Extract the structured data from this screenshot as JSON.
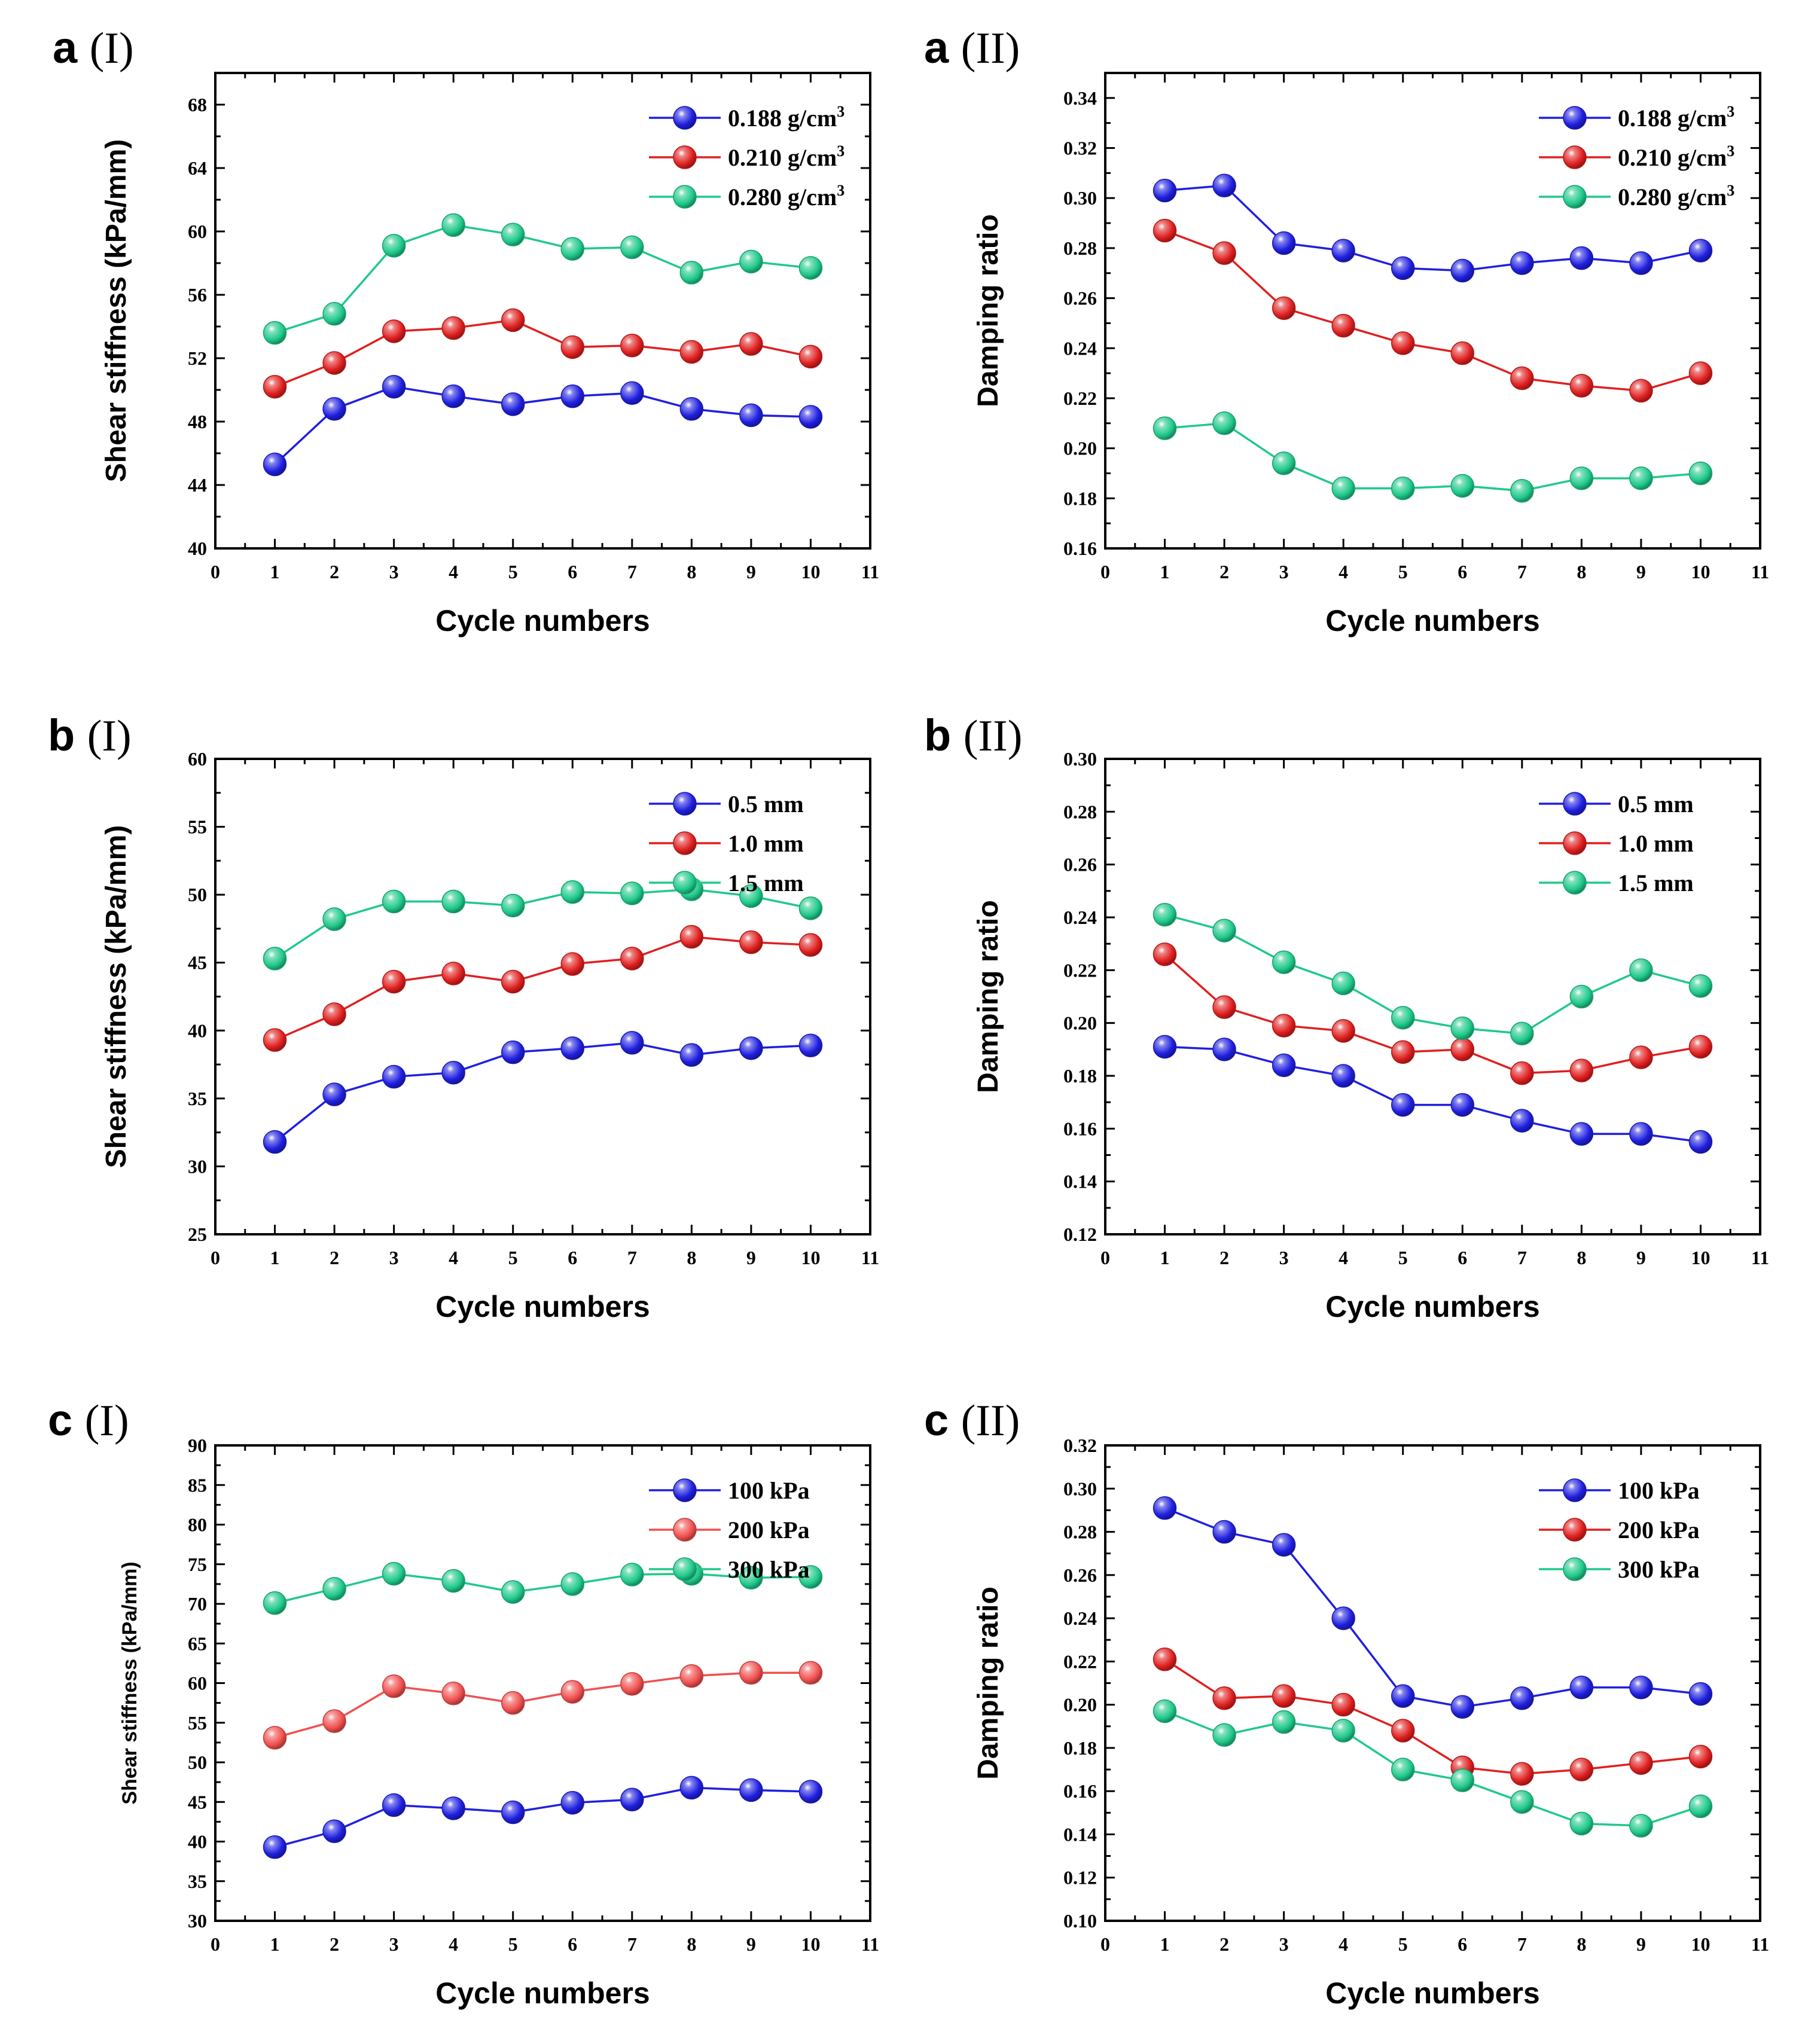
{
  "chart_data": [
    {
      "id": "a-I",
      "panel": "a",
      "subpanel": "(I)",
      "type": "line",
      "xlabel": "Cycle numbers",
      "ylabel": "Shear stiffness (kPa/mm)",
      "xlim": [
        0,
        11
      ],
      "ylim": [
        40,
        70
      ],
      "xticks": [
        "0",
        "1",
        "2",
        "3",
        "4",
        "5",
        "6",
        "7",
        "8",
        "9",
        "10",
        "11"
      ],
      "yticks": [
        "40",
        "44",
        "48",
        "52",
        "56",
        "60",
        "64",
        "68"
      ],
      "ytick_values": [
        40,
        44,
        48,
        52,
        56,
        60,
        64,
        68
      ],
      "legend_position": "top-right",
      "x": [
        1,
        2,
        3,
        4,
        5,
        6,
        7,
        8,
        9,
        10
      ],
      "series": [
        {
          "name": "0.188 g/cm",
          "sup": "3",
          "color": "#1f1fe0",
          "values": [
            45.3,
            48.8,
            50.2,
            49.6,
            49.1,
            49.6,
            49.8,
            48.8,
            48.4,
            48.3
          ]
        },
        {
          "name": "0.210 g/cm",
          "sup": "3",
          "color": "#e01f1f",
          "values": [
            50.2,
            51.7,
            53.7,
            53.9,
            54.4,
            52.7,
            52.8,
            52.4,
            52.9,
            52.1
          ]
        },
        {
          "name": "0.280 g/cm",
          "sup": "3",
          "color": "#1fc98a",
          "values": [
            53.6,
            54.8,
            59.1,
            60.4,
            59.8,
            58.9,
            59.0,
            57.4,
            58.1,
            57.7
          ]
        }
      ]
    },
    {
      "id": "a-II",
      "panel": "a",
      "subpanel": "(II)",
      "type": "line",
      "xlabel": "Cycle numbers",
      "ylabel": "Damping ratio",
      "xlim": [
        0,
        11
      ],
      "ylim": [
        0.16,
        0.35
      ],
      "xticks": [
        "0",
        "1",
        "2",
        "3",
        "4",
        "5",
        "6",
        "7",
        "8",
        "9",
        "10",
        "11"
      ],
      "yticks": [
        "0.16",
        "0.18",
        "0.20",
        "0.22",
        "0.24",
        "0.26",
        "0.28",
        "0.30",
        "0.32",
        "0.34"
      ],
      "ytick_values": [
        0.16,
        0.18,
        0.2,
        0.22,
        0.24,
        0.26,
        0.28,
        0.3,
        0.32,
        0.34
      ],
      "legend_position": "top-right",
      "x": [
        1,
        2,
        3,
        4,
        5,
        6,
        7,
        8,
        9,
        10
      ],
      "series": [
        {
          "name": "0.188 g/cm",
          "sup": "3",
          "color": "#1f1fe0",
          "values": [
            0.303,
            0.305,
            0.282,
            0.279,
            0.272,
            0.271,
            0.274,
            0.276,
            0.274,
            0.279
          ]
        },
        {
          "name": "0.210 g/cm",
          "sup": "3",
          "color": "#e01f1f",
          "values": [
            0.287,
            0.278,
            0.256,
            0.249,
            0.242,
            0.238,
            0.228,
            0.225,
            0.223,
            0.23
          ]
        },
        {
          "name": "0.280 g/cm",
          "sup": "3",
          "color": "#1fc98a",
          "values": [
            0.208,
            0.21,
            0.194,
            0.184,
            0.184,
            0.185,
            0.183,
            0.188,
            0.188,
            0.19
          ]
        }
      ]
    },
    {
      "id": "b-I",
      "panel": "b",
      "subpanel": "(I)",
      "type": "line",
      "xlabel": "Cycle numbers",
      "ylabel": "Shear stiffness (kPa/mm)",
      "xlim": [
        0,
        11
      ],
      "ylim": [
        25,
        60
      ],
      "xticks": [
        "0",
        "1",
        "2",
        "3",
        "4",
        "5",
        "6",
        "7",
        "8",
        "9",
        "10",
        "11"
      ],
      "yticks": [
        "25",
        "30",
        "35",
        "40",
        "45",
        "50",
        "55",
        "60"
      ],
      "ytick_values": [
        25,
        30,
        35,
        40,
        45,
        50,
        55,
        60
      ],
      "legend_position": "top-right",
      "x": [
        1,
        2,
        3,
        4,
        5,
        6,
        7,
        8,
        9,
        10
      ],
      "series": [
        {
          "name": "0.5 mm",
          "color": "#1f1fe0",
          "values": [
            31.8,
            35.3,
            36.6,
            36.9,
            38.4,
            38.7,
            39.1,
            38.2,
            38.7,
            38.9
          ]
        },
        {
          "name": "1.0 mm",
          "color": "#e01f1f",
          "values": [
            39.3,
            41.2,
            43.6,
            44.2,
            43.6,
            44.9,
            45.3,
            46.9,
            46.5,
            46.3
          ]
        },
        {
          "name": "1.5 mm",
          "color": "#1fc98a",
          "values": [
            45.3,
            48.2,
            49.5,
            49.5,
            49.2,
            50.2,
            50.1,
            50.4,
            49.9,
            49.0
          ]
        }
      ]
    },
    {
      "id": "b-II",
      "panel": "b",
      "subpanel": "(II)",
      "type": "line",
      "xlabel": "Cycle numbers",
      "ylabel": "Damping ratio",
      "xlim": [
        0,
        11
      ],
      "ylim": [
        0.12,
        0.3
      ],
      "xticks": [
        "0",
        "1",
        "2",
        "3",
        "4",
        "5",
        "6",
        "7",
        "8",
        "9",
        "10",
        "11"
      ],
      "yticks": [
        "0.12",
        "0.14",
        "0.16",
        "0.18",
        "0.20",
        "0.22",
        "0.24",
        "0.26",
        "0.28",
        "0.30"
      ],
      "ytick_values": [
        0.12,
        0.14,
        0.16,
        0.18,
        0.2,
        0.22,
        0.24,
        0.26,
        0.28,
        0.3
      ],
      "legend_position": "top-right",
      "x": [
        1,
        2,
        3,
        4,
        5,
        6,
        7,
        8,
        9,
        10
      ],
      "series": [
        {
          "name": "0.5 mm",
          "color": "#1f1fe0",
          "values": [
            0.191,
            0.19,
            0.184,
            0.18,
            0.169,
            0.169,
            0.163,
            0.158,
            0.158,
            0.155
          ]
        },
        {
          "name": "1.0 mm",
          "color": "#e01f1f",
          "values": [
            0.226,
            0.206,
            0.199,
            0.197,
            0.189,
            0.19,
            0.181,
            0.182,
            0.187,
            0.191
          ]
        },
        {
          "name": "1.5 mm",
          "color": "#1fc98a",
          "values": [
            0.241,
            0.235,
            0.223,
            0.215,
            0.202,
            0.198,
            0.196,
            0.21,
            0.22,
            0.214
          ]
        }
      ]
    },
    {
      "id": "c-I",
      "panel": "c",
      "subpanel": "(I)",
      "type": "line",
      "xlabel": "Cycle numbers",
      "ylabel": "Shear stiffness (kPa/mm)",
      "ylabel_style": "regular",
      "xlim": [
        0,
        11
      ],
      "ylim": [
        30,
        90
      ],
      "xticks": [
        "0",
        "1",
        "2",
        "3",
        "4",
        "5",
        "6",
        "7",
        "8",
        "9",
        "10",
        "11"
      ],
      "yticks": [
        "30",
        "35",
        "40",
        "45",
        "50",
        "55",
        "60",
        "65",
        "70",
        "75",
        "80",
        "85",
        "90"
      ],
      "ytick_values": [
        30,
        35,
        40,
        45,
        50,
        55,
        60,
        65,
        70,
        75,
        80,
        85,
        90
      ],
      "legend_position": "top-right",
      "x": [
        1,
        2,
        3,
        4,
        5,
        6,
        7,
        8,
        9,
        10
      ],
      "series": [
        {
          "name": "100 kPa",
          "color": "#1f1fe0",
          "values": [
            39.3,
            41.3,
            44.6,
            44.2,
            43.7,
            44.9,
            45.3,
            46.8,
            46.5,
            46.3
          ]
        },
        {
          "name": "200 kPa",
          "color": "#f0504f",
          "values": [
            53.1,
            55.2,
            59.6,
            58.7,
            57.5,
            58.9,
            59.9,
            60.9,
            61.3,
            61.3
          ]
        },
        {
          "name": "300 kPa",
          "color": "#1fc98a",
          "values": [
            70.1,
            71.9,
            73.8,
            72.9,
            71.5,
            72.5,
            73.7,
            73.8,
            73.3,
            73.4
          ]
        }
      ]
    },
    {
      "id": "c-II",
      "panel": "c",
      "subpanel": "(II)",
      "type": "line",
      "xlabel": "Cycle numbers",
      "ylabel": "Damping ratio",
      "xlim": [
        0,
        11
      ],
      "ylim": [
        0.1,
        0.32
      ],
      "xticks": [
        "0",
        "1",
        "2",
        "3",
        "4",
        "5",
        "6",
        "7",
        "8",
        "9",
        "10",
        "11"
      ],
      "yticks": [
        "0.10",
        "0.12",
        "0.14",
        "0.16",
        "0.18",
        "0.20",
        "0.22",
        "0.24",
        "0.26",
        "0.28",
        "0.30",
        "0.32"
      ],
      "ytick_values": [
        0.1,
        0.12,
        0.14,
        0.16,
        0.18,
        0.2,
        0.22,
        0.24,
        0.26,
        0.28,
        0.3,
        0.32
      ],
      "legend_position": "top-right",
      "x": [
        1,
        2,
        3,
        4,
        5,
        6,
        7,
        8,
        9,
        10
      ],
      "series": [
        {
          "name": "100 kPa",
          "color": "#1f1fe0",
          "values": [
            0.291,
            0.28,
            0.274,
            0.24,
            0.204,
            0.199,
            0.203,
            0.208,
            0.208,
            0.205
          ]
        },
        {
          "name": "200 kPa",
          "color": "#e01f1f",
          "values": [
            0.221,
            0.203,
            0.204,
            0.2,
            0.188,
            0.171,
            0.168,
            0.17,
            0.173,
            0.176
          ]
        },
        {
          "name": "300 kPa",
          "color": "#1fc98a",
          "values": [
            0.197,
            0.186,
            0.192,
            0.188,
            0.17,
            0.165,
            0.155,
            0.145,
            0.144,
            0.153
          ]
        }
      ]
    }
  ]
}
